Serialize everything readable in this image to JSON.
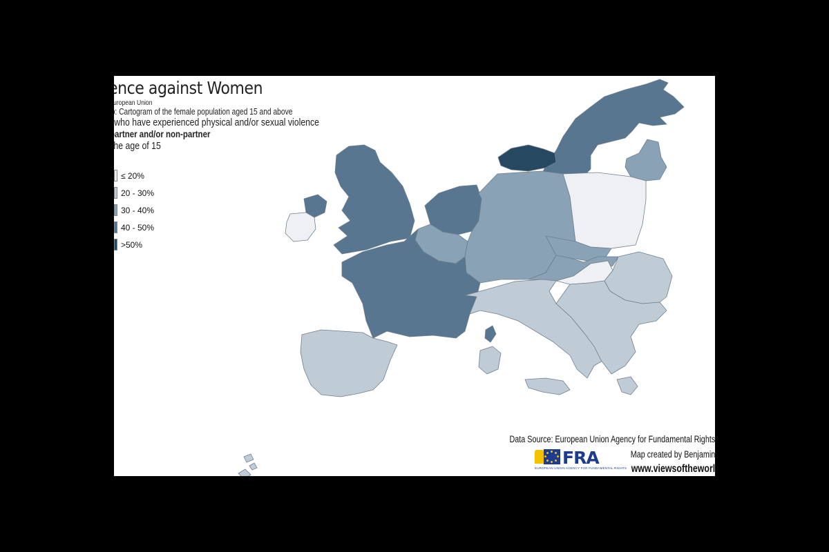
{
  "map": {
    "title": "ence against Women",
    "subtitle_lines": [
      "uropean Union",
      "ap: Cartogram of the female population aged 15 and above",
      "n who have experienced physical and/or sexual violence",
      "partner and/or non-partner",
      "the age of 15"
    ]
  },
  "legend": {
    "items": [
      {
        "label": "≤ 20%",
        "color": "#eef0f3"
      },
      {
        "label": "20 - 30%",
        "color": "#bfccd6"
      },
      {
        "label": "30 - 40%",
        "color": "#8aa2b5"
      },
      {
        "label": "40 - 50%",
        "color": "#587690"
      },
      {
        "label": ">50%",
        "color": "#264860"
      }
    ]
  },
  "colors": {
    "border": "#6e7f8d",
    "background": "#ffffff",
    "frame": "#000000"
  },
  "credits": {
    "source": "Data Source: European Union Agency for Fundamental Rights",
    "author": "Map created by Benjamin",
    "site": "www.viewsoftheworl"
  },
  "logo": {
    "name": "FRA",
    "tagline": "EUROPEAN UNION AGENCY FOR FUNDAMENTAL RIGHTS"
  }
}
